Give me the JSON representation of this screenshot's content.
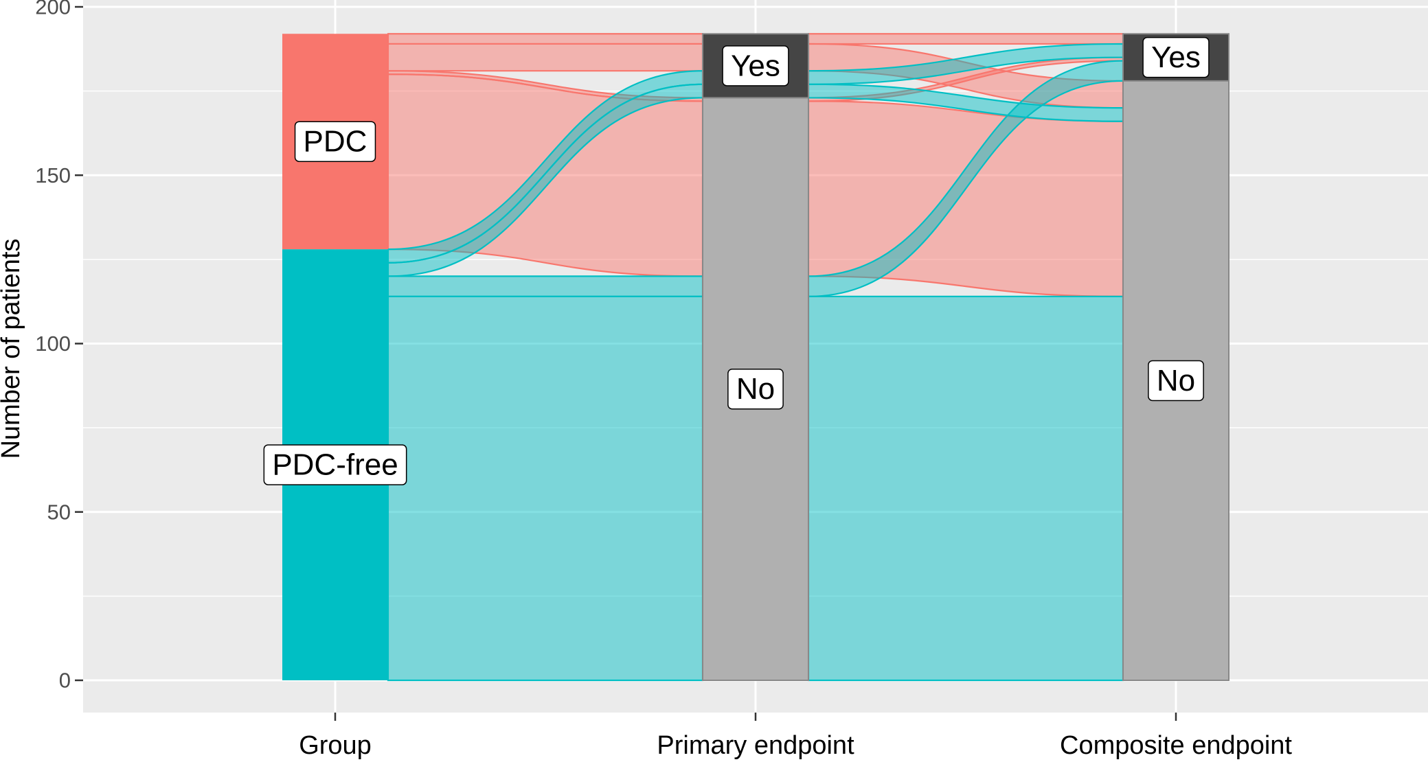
{
  "chart_data": {
    "type": "alluvial",
    "ylabel": "Number of patients",
    "ylim": [
      0,
      200
    ],
    "yticks": [
      0,
      50,
      100,
      150,
      200
    ],
    "axes": [
      "Group",
      "Primary endpoint",
      "Composite endpoint"
    ],
    "fill_variable": "Group",
    "colors": {
      "PDC": "#F8766D",
      "PDC-free": "#00BFC4",
      "stratum_yes": "#454545",
      "stratum_no": "#B0B0B0",
      "panel_background": "#EBEBEB",
      "grid": "#FFFFFF"
    },
    "strata": [
      {
        "axis": "Group",
        "labels": [
          "PDC",
          "PDC-free"
        ]
      },
      {
        "axis": "Primary endpoint",
        "labels": [
          "Yes",
          "No"
        ]
      },
      {
        "axis": "Composite endpoint",
        "labels": [
          "Yes",
          "No"
        ]
      }
    ],
    "flows": [
      {
        "group": "PDC",
        "primary": "Yes",
        "composite": "Yes",
        "count": 3
      },
      {
        "group": "PDC",
        "primary": "Yes",
        "composite": "No",
        "count": 8
      },
      {
        "group": "PDC",
        "primary": "No",
        "composite": "Yes",
        "count": 1
      },
      {
        "group": "PDC",
        "primary": "No",
        "composite": "No",
        "count": 52
      },
      {
        "group": "PDC-free",
        "primary": "Yes",
        "composite": "Yes",
        "count": 4
      },
      {
        "group": "PDC-free",
        "primary": "Yes",
        "composite": "No",
        "count": 4
      },
      {
        "group": "PDC-free",
        "primary": "No",
        "composite": "Yes",
        "count": 6
      },
      {
        "group": "PDC-free",
        "primary": "No",
        "composite": "No",
        "count": 114
      }
    ]
  }
}
